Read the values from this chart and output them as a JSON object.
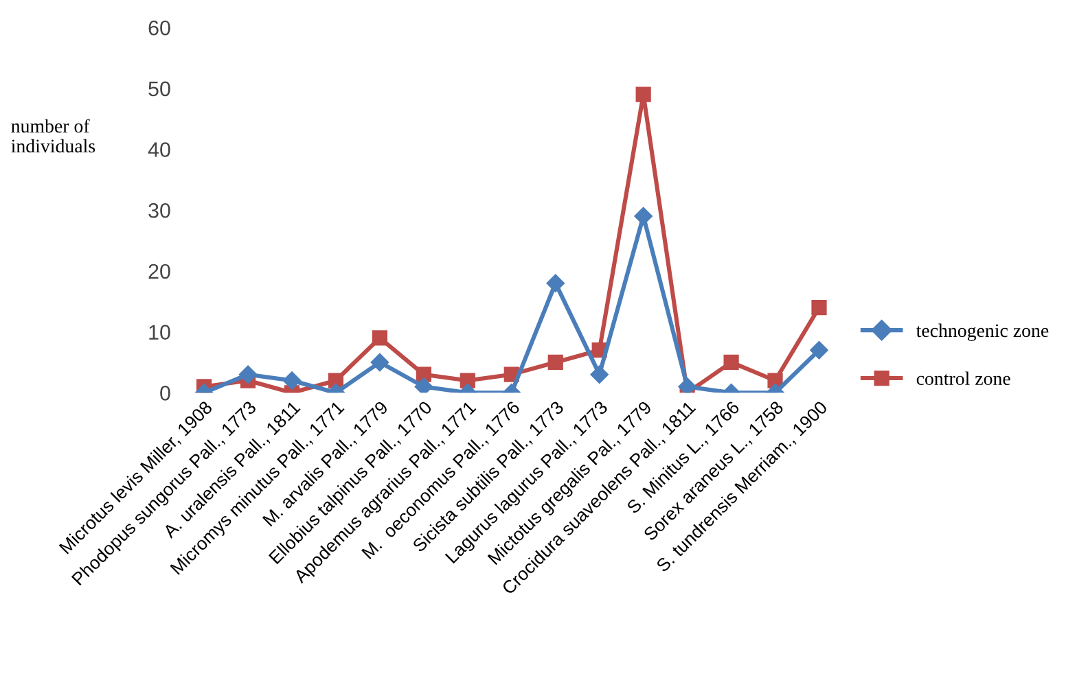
{
  "chart_data": {
    "type": "line",
    "ylabel": "number of\nindividuals",
    "categories": [
      "Microtus levis Miller, 1908",
      "Phodopus sungorus Pall., 1773",
      "A. uralensis Pall., 1811",
      "Micromys minutus Pall., 1771",
      "M. arvalis Pall., 1779",
      "Ellobius talpinus Pall., 1770",
      "Apodemus agrarius Pall., 1771",
      "M.  oeconomus Pall., 1776",
      "Sicista subtilis Pall., 1773",
      "Lagurus lagurus Pall., 1773",
      "Mictotus gregalis Pal., 1779",
      "Crocidura suaveolens Pall., 1811",
      "S. Minitus L., 1766",
      "Sorex araneus L., 1758",
      "S. tundrensis Merriam., 1900"
    ],
    "series": [
      {
        "name": "technogenic zone",
        "color": "#4a7ebb",
        "marker": "diamond",
        "values": [
          0,
          3,
          2,
          0,
          5,
          1,
          0,
          0,
          18,
          3,
          29,
          1,
          0,
          0,
          7
        ]
      },
      {
        "name": "control zone",
        "color": "#be4b48",
        "marker": "square",
        "values": [
          1,
          2,
          0,
          2,
          9,
          3,
          2,
          3,
          5,
          7,
          49,
          0,
          5,
          2,
          14
        ]
      }
    ],
    "ylim": [
      0,
      60
    ],
    "yticks": [
      0,
      10,
      20,
      30,
      40,
      50,
      60
    ],
    "grid": false,
    "legend": "right",
    "line_style": "solid"
  }
}
